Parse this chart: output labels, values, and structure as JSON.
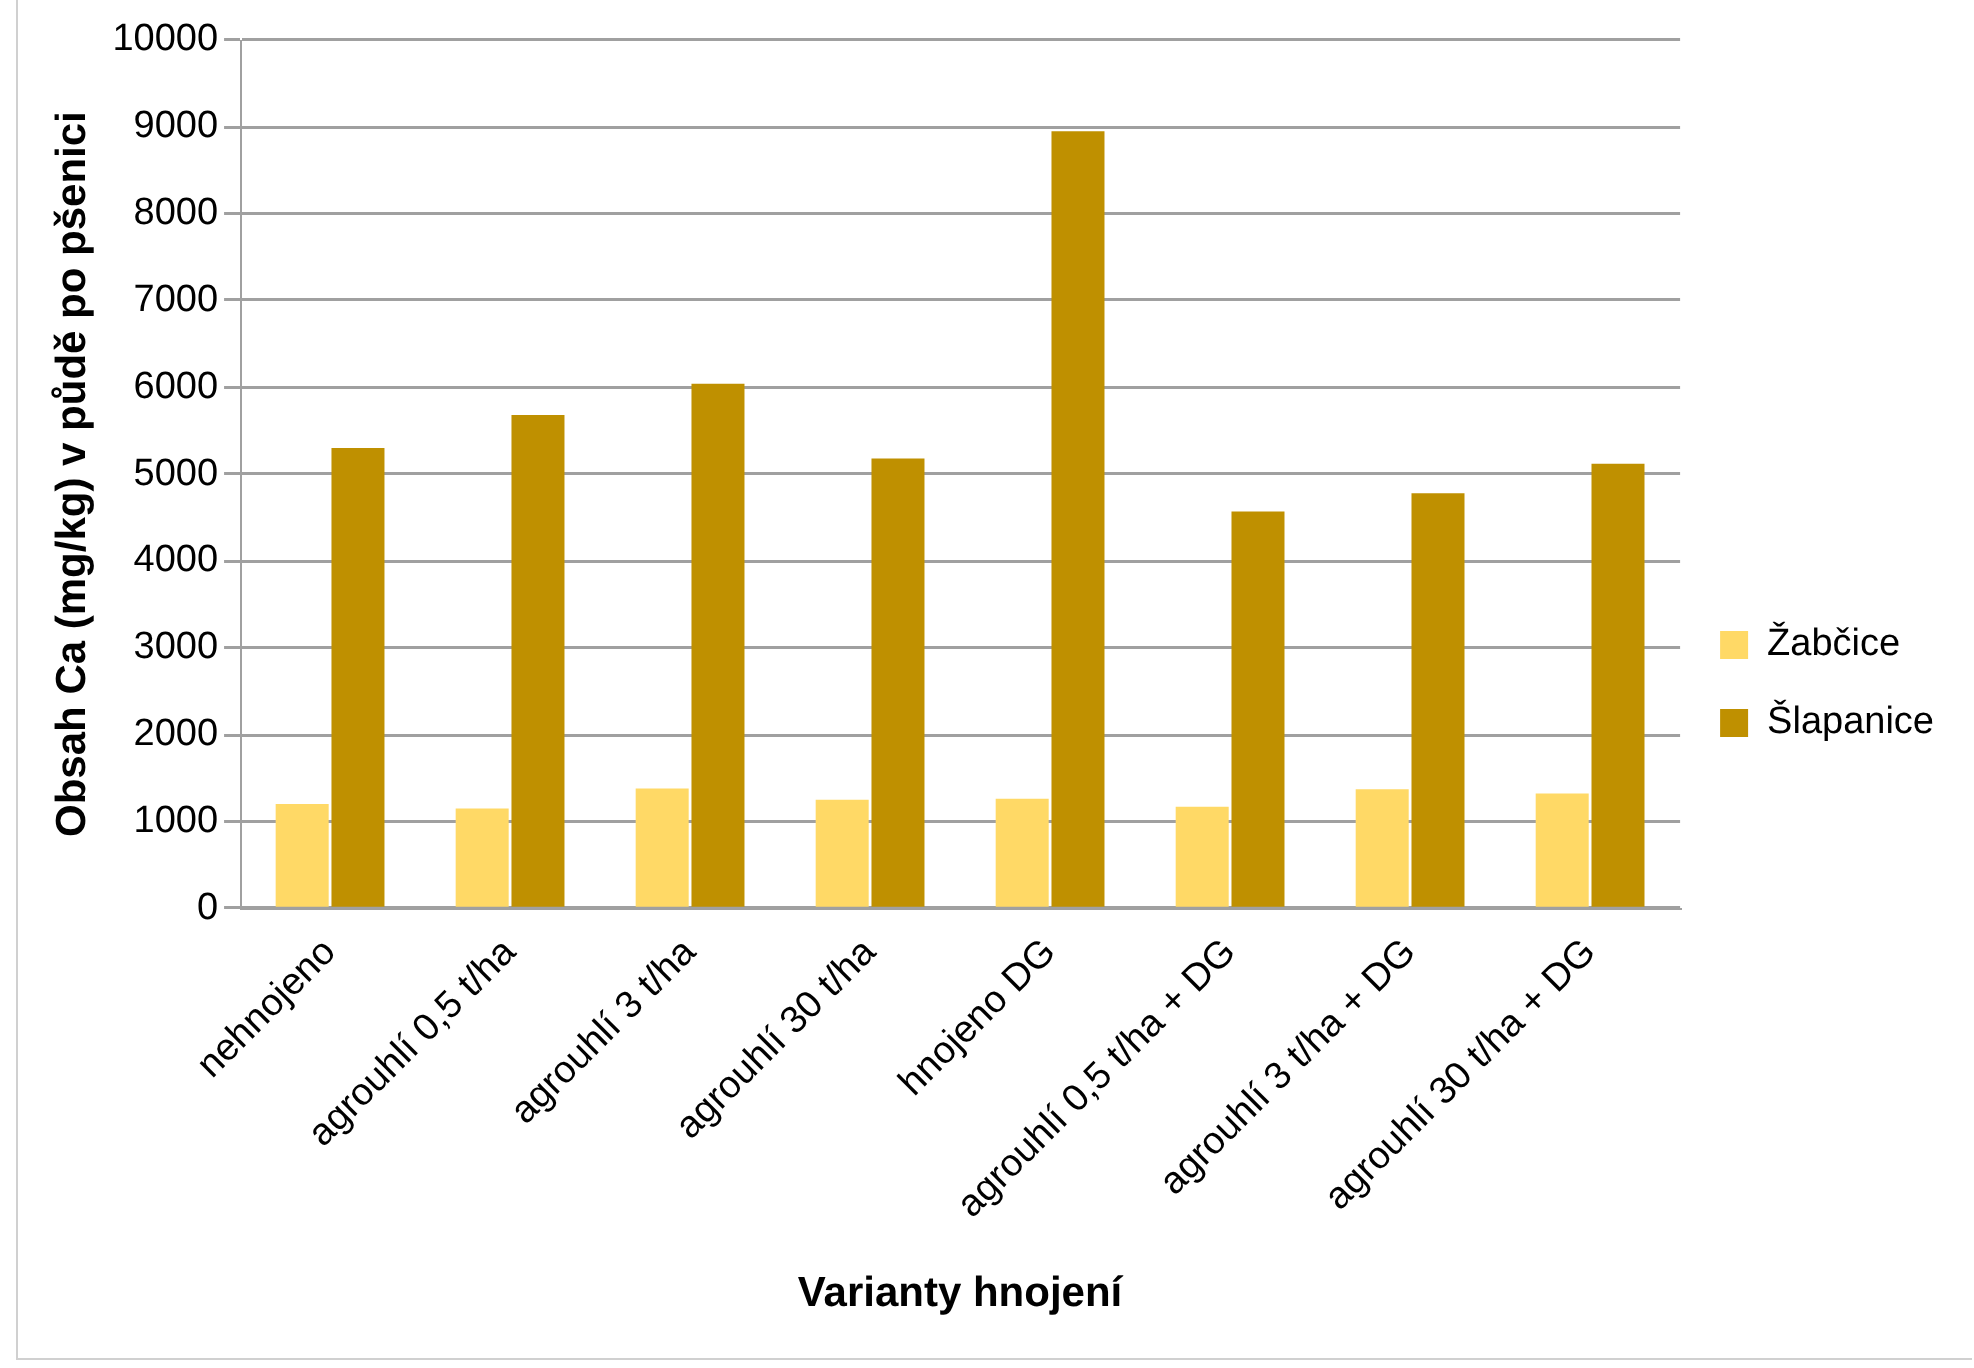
{
  "chart_data": {
    "type": "bar",
    "xlabel": "Varianty hnojení",
    "ylabel": "Obsah Ca (mg/kg) v půdě po pšenici",
    "categories": [
      "nehnojeno",
      "agrouhlí 0,5 t/ha",
      "agrouhlí 3 t/ha",
      "agrouhlí 30 t/ha",
      "hnojeno DG",
      "agrouhlí 0,5 t/ha + DG",
      "agrouhlí 3 t/ha + DG",
      "agrouhlí 30 t/ha + DG"
    ],
    "series": [
      {
        "name": "Žabčice",
        "color": "#ffd966",
        "values": [
          1200,
          1150,
          1380,
          1250,
          1260,
          1170,
          1370,
          1320
        ]
      },
      {
        "name": "Šlapanice",
        "color": "#bf9000",
        "values": [
          5300,
          5680,
          6040,
          5180,
          8950,
          4570,
          4780,
          5120
        ]
      }
    ],
    "ylim": [
      0,
      10000
    ],
    "yticks": [
      0,
      1000,
      2000,
      3000,
      4000,
      5000,
      6000,
      7000,
      8000,
      9000,
      10000
    ],
    "grid": "y",
    "legend": "right"
  }
}
